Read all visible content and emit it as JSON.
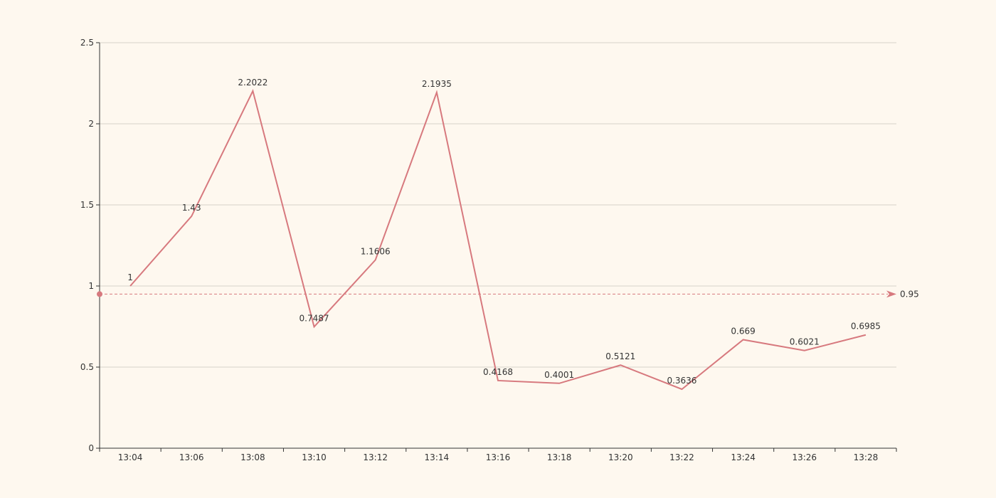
{
  "chart_data": {
    "type": "line",
    "categories": [
      "13:04",
      "13:06",
      "13:08",
      "13:10",
      "13:12",
      "13:14",
      "13:16",
      "13:18",
      "13:20",
      "13:22",
      "13:24",
      "13:26",
      "13:28"
    ],
    "values": [
      1,
      1.43,
      2.2022,
      0.7487,
      1.1606,
      2.1935,
      0.4168,
      0.4001,
      0.5121,
      0.3636,
      0.669,
      0.6021,
      0.6985
    ],
    "value_labels": [
      "1",
      "1.43",
      "2.2022",
      "0.7487",
      "1.1606",
      "2.1935",
      "0.4168",
      "0.4001",
      "0.5121",
      "0.3636",
      "0.669",
      "0.6021",
      "0.6985"
    ],
    "y_ticks": [
      "0",
      "0.5",
      "1",
      "1.5",
      "2",
      "2.5"
    ],
    "ylim": [
      0,
      2.5
    ],
    "grid": "horizontal",
    "mark_line": {
      "value": 0.95,
      "label": "0.95",
      "style": "dashed"
    },
    "colors": {
      "background": "#fef8ef",
      "series": "#d7797e",
      "grid": "#d6d2c8",
      "axis": "#333333",
      "text": "#333333"
    }
  }
}
